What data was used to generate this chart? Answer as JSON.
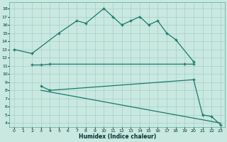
{
  "bg_color": "#c8e8e0",
  "grid_color": "#a0c8c0",
  "line_color": "#1a7a6a",
  "xlabel": "Humidex (Indice chaleur)",
  "ylim": [
    3.5,
    18.8
  ],
  "xlim": [
    -0.5,
    23.5
  ],
  "yticks": [
    4,
    5,
    6,
    7,
    8,
    9,
    10,
    11,
    12,
    13,
    14,
    15,
    16,
    17,
    18
  ],
  "xticks": [
    0,
    1,
    2,
    3,
    4,
    5,
    6,
    7,
    8,
    9,
    10,
    11,
    12,
    13,
    14,
    15,
    16,
    17,
    18,
    19,
    20,
    21,
    22,
    23
  ],
  "x_top": [
    0,
    2,
    5,
    7,
    8,
    10,
    11,
    12,
    13,
    14,
    15,
    16,
    17,
    18,
    20
  ],
  "y_top": [
    13.0,
    12.5,
    15.0,
    16.5,
    16.2,
    18.0,
    17.0,
    16.0,
    16.5,
    17.0,
    16.0,
    16.5,
    15.0,
    14.2,
    11.5
  ],
  "x_mid": [
    2,
    3,
    4,
    19,
    20
  ],
  "y_mid": [
    11.1,
    11.1,
    11.2,
    11.2,
    11.2
  ],
  "x_bot": [
    3,
    4,
    20,
    21,
    22,
    23
  ],
  "y_bot": [
    8.5,
    8.0,
    9.3,
    5.0,
    4.8,
    3.8
  ],
  "x_diag_start": 3,
  "y_diag_start": 8.5,
  "x_diag_end": 20,
  "y_diag_end": 9.3
}
